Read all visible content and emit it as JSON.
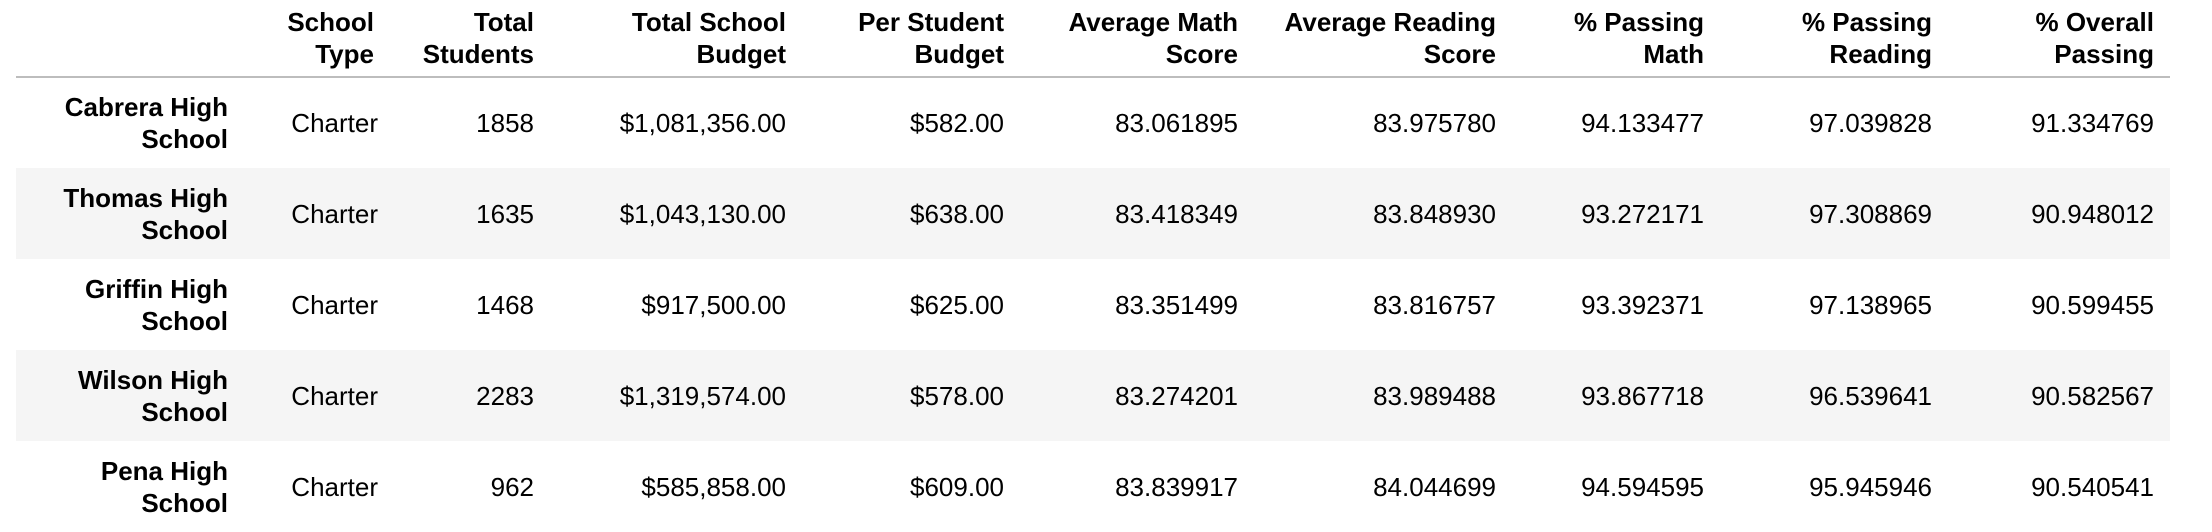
{
  "table": {
    "columns": [
      "School\nType",
      "Total\nStudents",
      "Total School\nBudget",
      "Per Student\nBudget",
      "Average Math\nScore",
      "Average Reading\nScore",
      "% Passing\nMath",
      "% Passing\nReading",
      "% Overall\nPassing"
    ],
    "column_labels": {
      "school_type": [
        "School",
        "Type"
      ],
      "total_students": [
        "Total",
        "Students"
      ],
      "total_budget": [
        "Total School",
        "Budget"
      ],
      "per_student_budget": [
        "Per Student",
        "Budget"
      ],
      "avg_math": [
        "Average Math",
        "Score"
      ],
      "avg_reading": [
        "Average Reading",
        "Score"
      ],
      "pct_math": [
        "% Passing",
        "Math"
      ],
      "pct_reading": [
        "% Passing",
        "Reading"
      ],
      "pct_overall": [
        "% Overall",
        "Passing"
      ]
    },
    "rows": [
      {
        "name": [
          "Cabrera High",
          "School"
        ],
        "school_type": "Charter",
        "total_students": "1858",
        "total_budget": "$1,081,356.00",
        "per_student_budget": "$582.00",
        "avg_math": "83.061895",
        "avg_reading": "83.975780",
        "pct_math": "94.133477",
        "pct_reading": "97.039828",
        "pct_overall": "91.334769"
      },
      {
        "name": [
          "Thomas High",
          "School"
        ],
        "school_type": "Charter",
        "total_students": "1635",
        "total_budget": "$1,043,130.00",
        "per_student_budget": "$638.00",
        "avg_math": "83.418349",
        "avg_reading": "83.848930",
        "pct_math": "93.272171",
        "pct_reading": "97.308869",
        "pct_overall": "90.948012"
      },
      {
        "name": [
          "Griffin High",
          "School"
        ],
        "school_type": "Charter",
        "total_students": "1468",
        "total_budget": "$917,500.00",
        "per_student_budget": "$625.00",
        "avg_math": "83.351499",
        "avg_reading": "83.816757",
        "pct_math": "93.392371",
        "pct_reading": "97.138965",
        "pct_overall": "90.599455"
      },
      {
        "name": [
          "Wilson High",
          "School"
        ],
        "school_type": "Charter",
        "total_students": "2283",
        "total_budget": "$1,319,574.00",
        "per_student_budget": "$578.00",
        "avg_math": "83.274201",
        "avg_reading": "83.989488",
        "pct_math": "93.867718",
        "pct_reading": "96.539641",
        "pct_overall": "90.582567"
      },
      {
        "name": [
          "Pena High",
          "School"
        ],
        "school_type": "Charter",
        "total_students": "962",
        "total_budget": "$585,858.00",
        "per_student_budget": "$609.00",
        "avg_math": "83.839917",
        "avg_reading": "84.044699",
        "pct_math": "94.594595",
        "pct_reading": "95.945946",
        "pct_overall": "90.540541"
      }
    ]
  }
}
